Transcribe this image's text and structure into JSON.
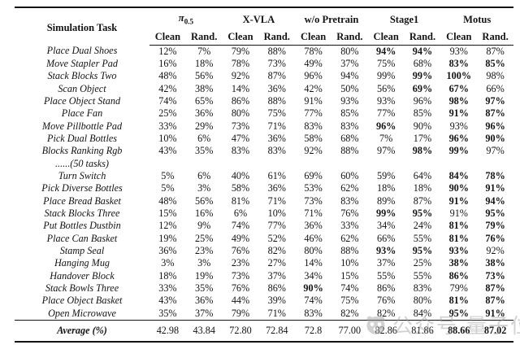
{
  "colors": {
    "background": "#ffffff",
    "text": "#141414",
    "rule": "#141414",
    "watermark": "#9b9b9b"
  },
  "table": {
    "first_header": "Simulation Task",
    "groups": [
      {
        "main": "π",
        "sub": "0.5"
      },
      {
        "label": "X-VLA"
      },
      {
        "label": "w/o Pretrain"
      },
      {
        "label": "Stage1"
      },
      {
        "label": "Motus"
      }
    ],
    "sub_headers": [
      "Clean",
      "Rand."
    ],
    "rows": [
      {
        "task": "Place Dual Shoes",
        "values": [
          "12%",
          "7%",
          "79%",
          "88%",
          "78%",
          "80%",
          "94%",
          "94%",
          "93%",
          "87%"
        ],
        "bold": [
          6,
          7
        ]
      },
      {
        "task": "Move Stapler Pad",
        "values": [
          "16%",
          "18%",
          "78%",
          "73%",
          "49%",
          "37%",
          "75%",
          "68%",
          "83%",
          "85%"
        ],
        "bold": [
          8,
          9
        ]
      },
      {
        "task": "Stack Blocks Two",
        "values": [
          "48%",
          "56%",
          "92%",
          "87%",
          "96%",
          "94%",
          "99%",
          "99%",
          "100%",
          "98%"
        ],
        "bold": [
          7,
          8
        ]
      },
      {
        "task": "Scan Object",
        "values": [
          "42%",
          "38%",
          "14%",
          "36%",
          "42%",
          "50%",
          "56%",
          "69%",
          "67%",
          "66%"
        ],
        "bold": [
          7,
          8
        ]
      },
      {
        "task": "Place Object Stand",
        "values": [
          "74%",
          "65%",
          "86%",
          "88%",
          "91%",
          "93%",
          "93%",
          "96%",
          "98%",
          "97%"
        ],
        "bold": [
          8,
          9
        ]
      },
      {
        "task": "Place Fan",
        "values": [
          "25%",
          "36%",
          "80%",
          "75%",
          "77%",
          "85%",
          "77%",
          "85%",
          "91%",
          "87%"
        ],
        "bold": [
          8,
          9
        ]
      },
      {
        "task": "Move Pillbottle Pad",
        "values": [
          "33%",
          "29%",
          "73%",
          "71%",
          "83%",
          "83%",
          "96%",
          "90%",
          "93%",
          "96%"
        ],
        "bold": [
          6,
          9
        ]
      },
      {
        "task": "Pick Dual Bottles",
        "values": [
          "10%",
          "6%",
          "47%",
          "36%",
          "58%",
          "68%",
          "7%",
          "17%",
          "96%",
          "90%"
        ],
        "bold": [
          8,
          9
        ]
      },
      {
        "task": "Blocks Ranking Rgb",
        "values": [
          "43%",
          "35%",
          "83%",
          "83%",
          "92%",
          "88%",
          "97%",
          "98%",
          "99%",
          "97%"
        ],
        "bold": [
          7,
          8
        ]
      },
      {
        "task": "......(50 tasks)",
        "values": [
          "",
          "",
          "",
          "",
          "",
          "",
          "",
          "",
          "",
          ""
        ],
        "bold": []
      },
      {
        "task": "Turn Switch",
        "values": [
          "5%",
          "6%",
          "40%",
          "61%",
          "69%",
          "60%",
          "59%",
          "64%",
          "84%",
          "78%"
        ],
        "bold": [
          8,
          9
        ]
      },
      {
        "task": "Pick Diverse Bottles",
        "values": [
          "5%",
          "3%",
          "58%",
          "36%",
          "53%",
          "62%",
          "18%",
          "18%",
          "90%",
          "91%"
        ],
        "bold": [
          8,
          9
        ]
      },
      {
        "task": "Place Bread Basket",
        "values": [
          "48%",
          "56%",
          "81%",
          "71%",
          "73%",
          "83%",
          "89%",
          "87%",
          "91%",
          "94%"
        ],
        "bold": [
          8,
          9
        ]
      },
      {
        "task": "Stack Blocks Three",
        "values": [
          "15%",
          "16%",
          "6%",
          "10%",
          "71%",
          "76%",
          "99%",
          "95%",
          "91%",
          "95%"
        ],
        "bold": [
          6,
          7,
          9
        ]
      },
      {
        "task": "Put Bottles Dustbin",
        "values": [
          "12%",
          "9%",
          "74%",
          "77%",
          "36%",
          "33%",
          "34%",
          "24%",
          "81%",
          "79%"
        ],
        "bold": [
          8,
          9
        ]
      },
      {
        "task": "Place Can Basket",
        "values": [
          "19%",
          "25%",
          "49%",
          "52%",
          "46%",
          "62%",
          "66%",
          "55%",
          "81%",
          "76%"
        ],
        "bold": [
          8,
          9
        ]
      },
      {
        "task": "Stamp Seal",
        "values": [
          "36%",
          "23%",
          "76%",
          "82%",
          "80%",
          "88%",
          "93%",
          "95%",
          "93%",
          "92%"
        ],
        "bold": [
          6,
          7,
          8
        ]
      },
      {
        "task": "Hanging Mug",
        "values": [
          "3%",
          "3%",
          "23%",
          "27%",
          "14%",
          "10%",
          "37%",
          "25%",
          "38%",
          "38%"
        ],
        "bold": [
          8,
          9
        ]
      },
      {
        "task": "Handover Block",
        "values": [
          "18%",
          "19%",
          "73%",
          "37%",
          "34%",
          "15%",
          "55%",
          "55%",
          "86%",
          "73%"
        ],
        "bold": [
          8,
          9
        ]
      },
      {
        "task": "Stack Bowls Three",
        "values": [
          "33%",
          "35%",
          "76%",
          "86%",
          "90%",
          "74%",
          "86%",
          "83%",
          "79%",
          "87%"
        ],
        "bold": [
          4,
          9
        ]
      },
      {
        "task": "Place Object Basket",
        "values": [
          "43%",
          "36%",
          "44%",
          "39%",
          "74%",
          "75%",
          "76%",
          "80%",
          "81%",
          "87%"
        ],
        "bold": [
          8,
          9
        ]
      },
      {
        "task": "Open Microwave",
        "values": [
          "35%",
          "37%",
          "79%",
          "71%",
          "83%",
          "82%",
          "82%",
          "84%",
          "95%",
          "91%"
        ],
        "bold": [
          8,
          9
        ]
      }
    ],
    "average": {
      "label": "Average (%)",
      "values": [
        "42.98",
        "43.84",
        "72.80",
        "72.84",
        "72.8",
        "77.00",
        "82.86",
        "81.86",
        "88.66",
        "87.02"
      ],
      "bold": [
        8,
        9
      ]
    }
  },
  "watermark": {
    "text": "公众号 量子位"
  }
}
